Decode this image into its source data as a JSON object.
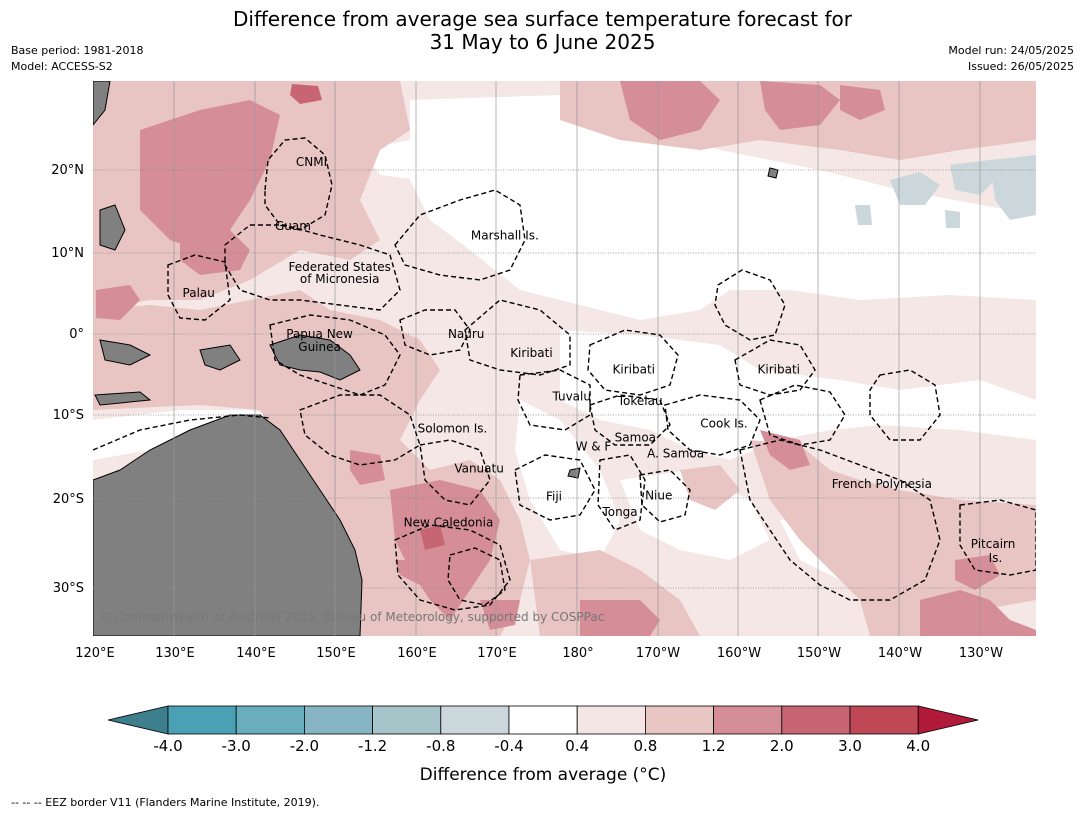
{
  "title_line1": "Difference from average sea surface temperature forecast for",
  "title_line2": "31 May to 6 June 2025",
  "meta_left": [
    "Base period: 1981-2018",
    "Model: ACCESS-S2"
  ],
  "meta_right": [
    "Model run: 24/05/2025",
    "Issued: 26/05/2025"
  ],
  "map": {
    "lon_ticks": [
      "120°E",
      "130°E",
      "140°E",
      "150°E",
      "160°E",
      "170°E",
      "180°",
      "170°W",
      "160°W",
      "150°W",
      "140°W",
      "130°W"
    ],
    "lat_ticks": [
      "20°N",
      "10°N",
      "0°",
      "10°S",
      "20°S",
      "30°S"
    ],
    "copyright": "© Commonwealth of Australia 2025, Bureau of Meteorology, supported by COSPPac",
    "places": [
      {
        "name": "CNMI",
        "lon": 147,
        "lat": 21
      },
      {
        "name": "Guam",
        "lon": 144.7,
        "lat": 13.2
      },
      {
        "name": "Marshall Is.",
        "lon": 171,
        "lat": 12
      },
      {
        "name": "Federated States",
        "lon": 150.5,
        "lat": 8.2
      },
      {
        "name": "of Micronesia",
        "lon": 150.5,
        "lat": 6.7
      },
      {
        "name": "Palau",
        "lon": 133,
        "lat": 5
      },
      {
        "name": "Papua New",
        "lon": 148,
        "lat": 0
      },
      {
        "name": "Guinea",
        "lon": 148,
        "lat": -1.6
      },
      {
        "name": "Nauru",
        "lon": 166.2,
        "lat": 0
      },
      {
        "name": "Kiribati",
        "lon": 174.3,
        "lat": -2.3
      },
      {
        "name": "Kiribati",
        "lon": 187,
        "lat": -4.3
      },
      {
        "name": "Kiribati",
        "lon": 205,
        "lat": -4.3
      },
      {
        "name": "Tuvalu",
        "lon": 179.3,
        "lat": -7.6
      },
      {
        "name": "Tokelau",
        "lon": 187.8,
        "lat": -8.2
      },
      {
        "name": "Solomon Is.",
        "lon": 164.5,
        "lat": -11.5
      },
      {
        "name": "Cook Is.",
        "lon": 198.2,
        "lat": -10.9
      },
      {
        "name": "Samoa",
        "lon": 187.2,
        "lat": -12.6
      },
      {
        "name": "W & F",
        "lon": 182,
        "lat": -13.7
      },
      {
        "name": "A. Samoa",
        "lon": 192.2,
        "lat": -14.6
      },
      {
        "name": "Vanuatu",
        "lon": 167.8,
        "lat": -16.4
      },
      {
        "name": "French Polynesia",
        "lon": 217.8,
        "lat": -18.3
      },
      {
        "name": "Fiji",
        "lon": 177.1,
        "lat": -19.8
      },
      {
        "name": "Niue",
        "lon": 190.1,
        "lat": -19.7
      },
      {
        "name": "Tonga",
        "lon": 185.3,
        "lat": -21.7
      },
      {
        "name": "New Caledonia",
        "lon": 164,
        "lat": -23
      },
      {
        "name": "Pitcairn",
        "lon": 231.6,
        "lat": -25.6
      },
      {
        "name": "Is.",
        "lon": 231.9,
        "lat": -27.3
      }
    ]
  },
  "colorbar": {
    "label": "Difference from average (°C)",
    "ticks": [
      "-4.0",
      "-3.0",
      "-2.0",
      "-1.2",
      "-0.8",
      "-0.4",
      "0.4",
      "0.8",
      "1.2",
      "2.0",
      "3.0",
      "4.0"
    ],
    "colors": [
      "#3d7f8c",
      "#4aa0b4",
      "#6aaebe",
      "#87b4c2",
      "#a6c5cb",
      "#cbd7da",
      "#ffffff",
      "#f3e6e5",
      "#e8c4c2",
      "#d58d97",
      "#c76672",
      "#c04755",
      "#b21a3a"
    ]
  },
  "footnote": "--  --  -- EEZ border V11 (Flanders Marine Institute, 2019)."
}
